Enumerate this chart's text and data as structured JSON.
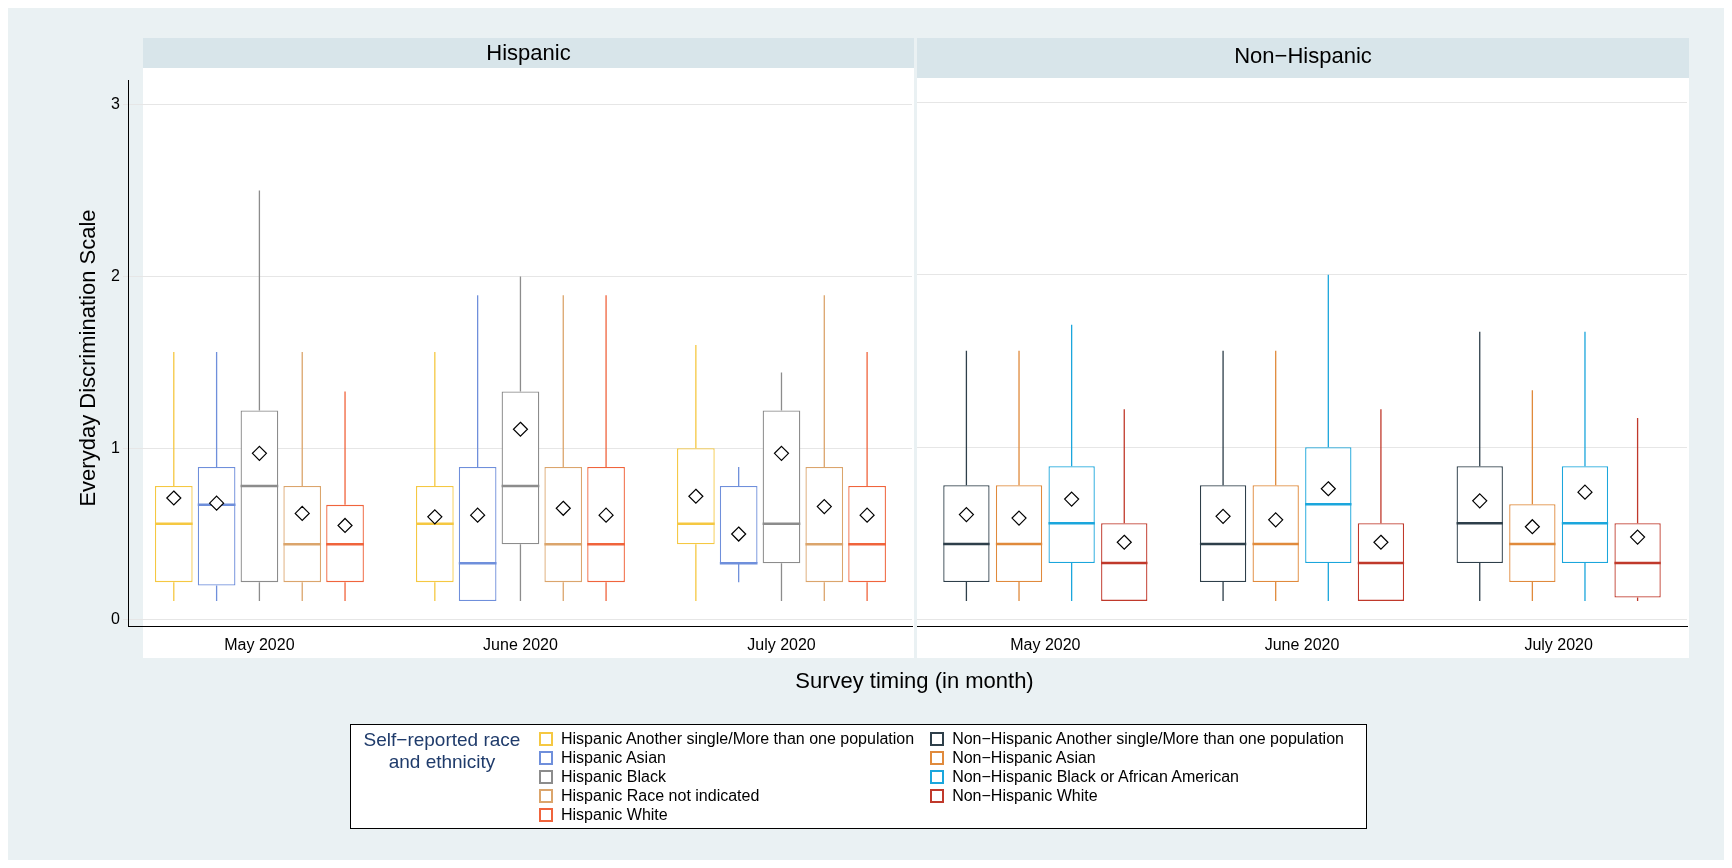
{
  "chart_data": [
    {
      "type": "box",
      "title": "Hispanic",
      "xlabel": "Survey timing (in month)",
      "ylabel": "Everyday Discrimination Scale",
      "legend_title": "Self−reported race and ethnicity",
      "legend": "bottom",
      "grid": "y",
      "categories": [
        "May 2020",
        "June 2020",
        "July 2020"
      ],
      "ylim": [
        -0.04,
        3.14
      ],
      "yticks": [
        0,
        1,
        2,
        3
      ],
      "series": [
        {
          "name": "Hispanic Another single/More than one population",
          "color": "#f5c842",
          "boxes": [
            {
              "low": 0.11,
              "q1": 0.22,
              "median": 0.56,
              "q3": 0.78,
              "high": 1.56,
              "mean": 0.71
            },
            {
              "low": 0.11,
              "q1": 0.22,
              "median": 0.56,
              "q3": 0.78,
              "high": 1.56,
              "mean": 0.6
            },
            {
              "low": 0.11,
              "q1": 0.44,
              "median": 0.56,
              "q3": 1.0,
              "high": 1.6,
              "mean": 0.72
            }
          ]
        },
        {
          "name": "Hispanic Asian",
          "color": "#6f8fdb",
          "boxes": [
            {
              "low": 0.11,
              "q1": 0.2,
              "median": 0.67,
              "q3": 0.89,
              "high": 1.56,
              "mean": 0.68
            },
            {
              "low": 0.11,
              "q1": 0.11,
              "median": 0.33,
              "q3": 0.89,
              "high": 1.89,
              "mean": 0.61
            },
            {
              "low": 0.22,
              "q1": 0.33,
              "median": 0.33,
              "q3": 0.78,
              "high": 0.89,
              "mean": 0.5
            }
          ]
        },
        {
          "name": "Hispanic Black",
          "color": "#8c8c8c",
          "boxes": [
            {
              "low": 0.11,
              "q1": 0.22,
              "median": 0.78,
              "q3": 1.22,
              "high": 2.5,
              "mean": 0.97
            },
            {
              "low": 0.11,
              "q1": 0.44,
              "median": 0.78,
              "q3": 1.33,
              "high": 2.0,
              "mean": 1.11
            },
            {
              "low": 0.11,
              "q1": 0.33,
              "median": 0.56,
              "q3": 1.22,
              "high": 1.44,
              "mean": 0.97
            }
          ]
        },
        {
          "name": "Hispanic Race not indicated",
          "color": "#dba56c",
          "boxes": [
            {
              "low": 0.11,
              "q1": 0.22,
              "median": 0.44,
              "q3": 0.78,
              "high": 1.56,
              "mean": 0.62
            },
            {
              "low": 0.11,
              "q1": 0.22,
              "median": 0.44,
              "q3": 0.89,
              "high": 1.89,
              "mean": 0.65
            },
            {
              "low": 0.11,
              "q1": 0.22,
              "median": 0.44,
              "q3": 0.89,
              "high": 1.89,
              "mean": 0.66
            }
          ]
        },
        {
          "name": "Hispanic White",
          "color": "#f0643c",
          "boxes": [
            {
              "low": 0.11,
              "q1": 0.22,
              "median": 0.44,
              "q3": 0.67,
              "high": 1.33,
              "mean": 0.55
            },
            {
              "low": 0.11,
              "q1": 0.22,
              "median": 0.44,
              "q3": 0.89,
              "high": 1.89,
              "mean": 0.61
            },
            {
              "low": 0.11,
              "q1": 0.22,
              "median": 0.44,
              "q3": 0.78,
              "high": 1.56,
              "mean": 0.61
            }
          ]
        }
      ]
    },
    {
      "type": "box",
      "title": "Non−Hispanic",
      "legend": "bottom",
      "grid": "y",
      "tick_labels": "x",
      "categories": [
        "May 2020",
        "June 2020",
        "July 2020"
      ],
      "ylim": [
        -0.04,
        3.14
      ],
      "yticks": [
        0,
        1,
        2,
        3
      ],
      "series": [
        {
          "name": "Non−Hispanic Another single/More than one population",
          "color": "#2e3f4a",
          "boxes": [
            {
              "low": 0.11,
              "q1": 0.22,
              "median": 0.44,
              "q3": 0.78,
              "high": 1.56,
              "mean": 0.61
            },
            {
              "low": 0.11,
              "q1": 0.22,
              "median": 0.44,
              "q3": 0.78,
              "high": 1.56,
              "mean": 0.6
            },
            {
              "low": 0.11,
              "q1": 0.33,
              "median": 0.56,
              "q3": 0.89,
              "high": 1.67,
              "mean": 0.69
            }
          ]
        },
        {
          "name": "Non−Hispanic Asian",
          "color": "#e08a3c",
          "boxes": [
            {
              "low": 0.11,
              "q1": 0.22,
              "median": 0.44,
              "q3": 0.78,
              "high": 1.56,
              "mean": 0.59
            },
            {
              "low": 0.11,
              "q1": 0.22,
              "median": 0.44,
              "q3": 0.78,
              "high": 1.56,
              "mean": 0.58
            },
            {
              "low": 0.11,
              "q1": 0.22,
              "median": 0.44,
              "q3": 0.67,
              "high": 1.33,
              "mean": 0.54
            }
          ]
        },
        {
          "name": "Non−Hispanic Black or African American",
          "color": "#1ba6dc",
          "boxes": [
            {
              "low": 0.11,
              "q1": 0.33,
              "median": 0.56,
              "q3": 0.89,
              "high": 1.71,
              "mean": 0.7
            },
            {
              "low": 0.11,
              "q1": 0.33,
              "median": 0.67,
              "q3": 1.0,
              "high": 2.0,
              "mean": 0.76
            },
            {
              "low": 0.11,
              "q1": 0.33,
              "median": 0.56,
              "q3": 0.89,
              "high": 1.67,
              "mean": 0.74
            }
          ]
        },
        {
          "name": "Non−Hispanic White",
          "color": "#c0392b",
          "boxes": [
            {
              "low": 0.11,
              "q1": 0.11,
              "median": 0.33,
              "q3": 0.56,
              "high": 1.22,
              "mean": 0.45
            },
            {
              "low": 0.11,
              "q1": 0.11,
              "median": 0.33,
              "q3": 0.56,
              "high": 1.22,
              "mean": 0.45
            },
            {
              "low": 0.11,
              "q1": 0.13,
              "median": 0.33,
              "q3": 0.56,
              "high": 1.17,
              "mean": 0.48
            }
          ]
        }
      ]
    }
  ]
}
